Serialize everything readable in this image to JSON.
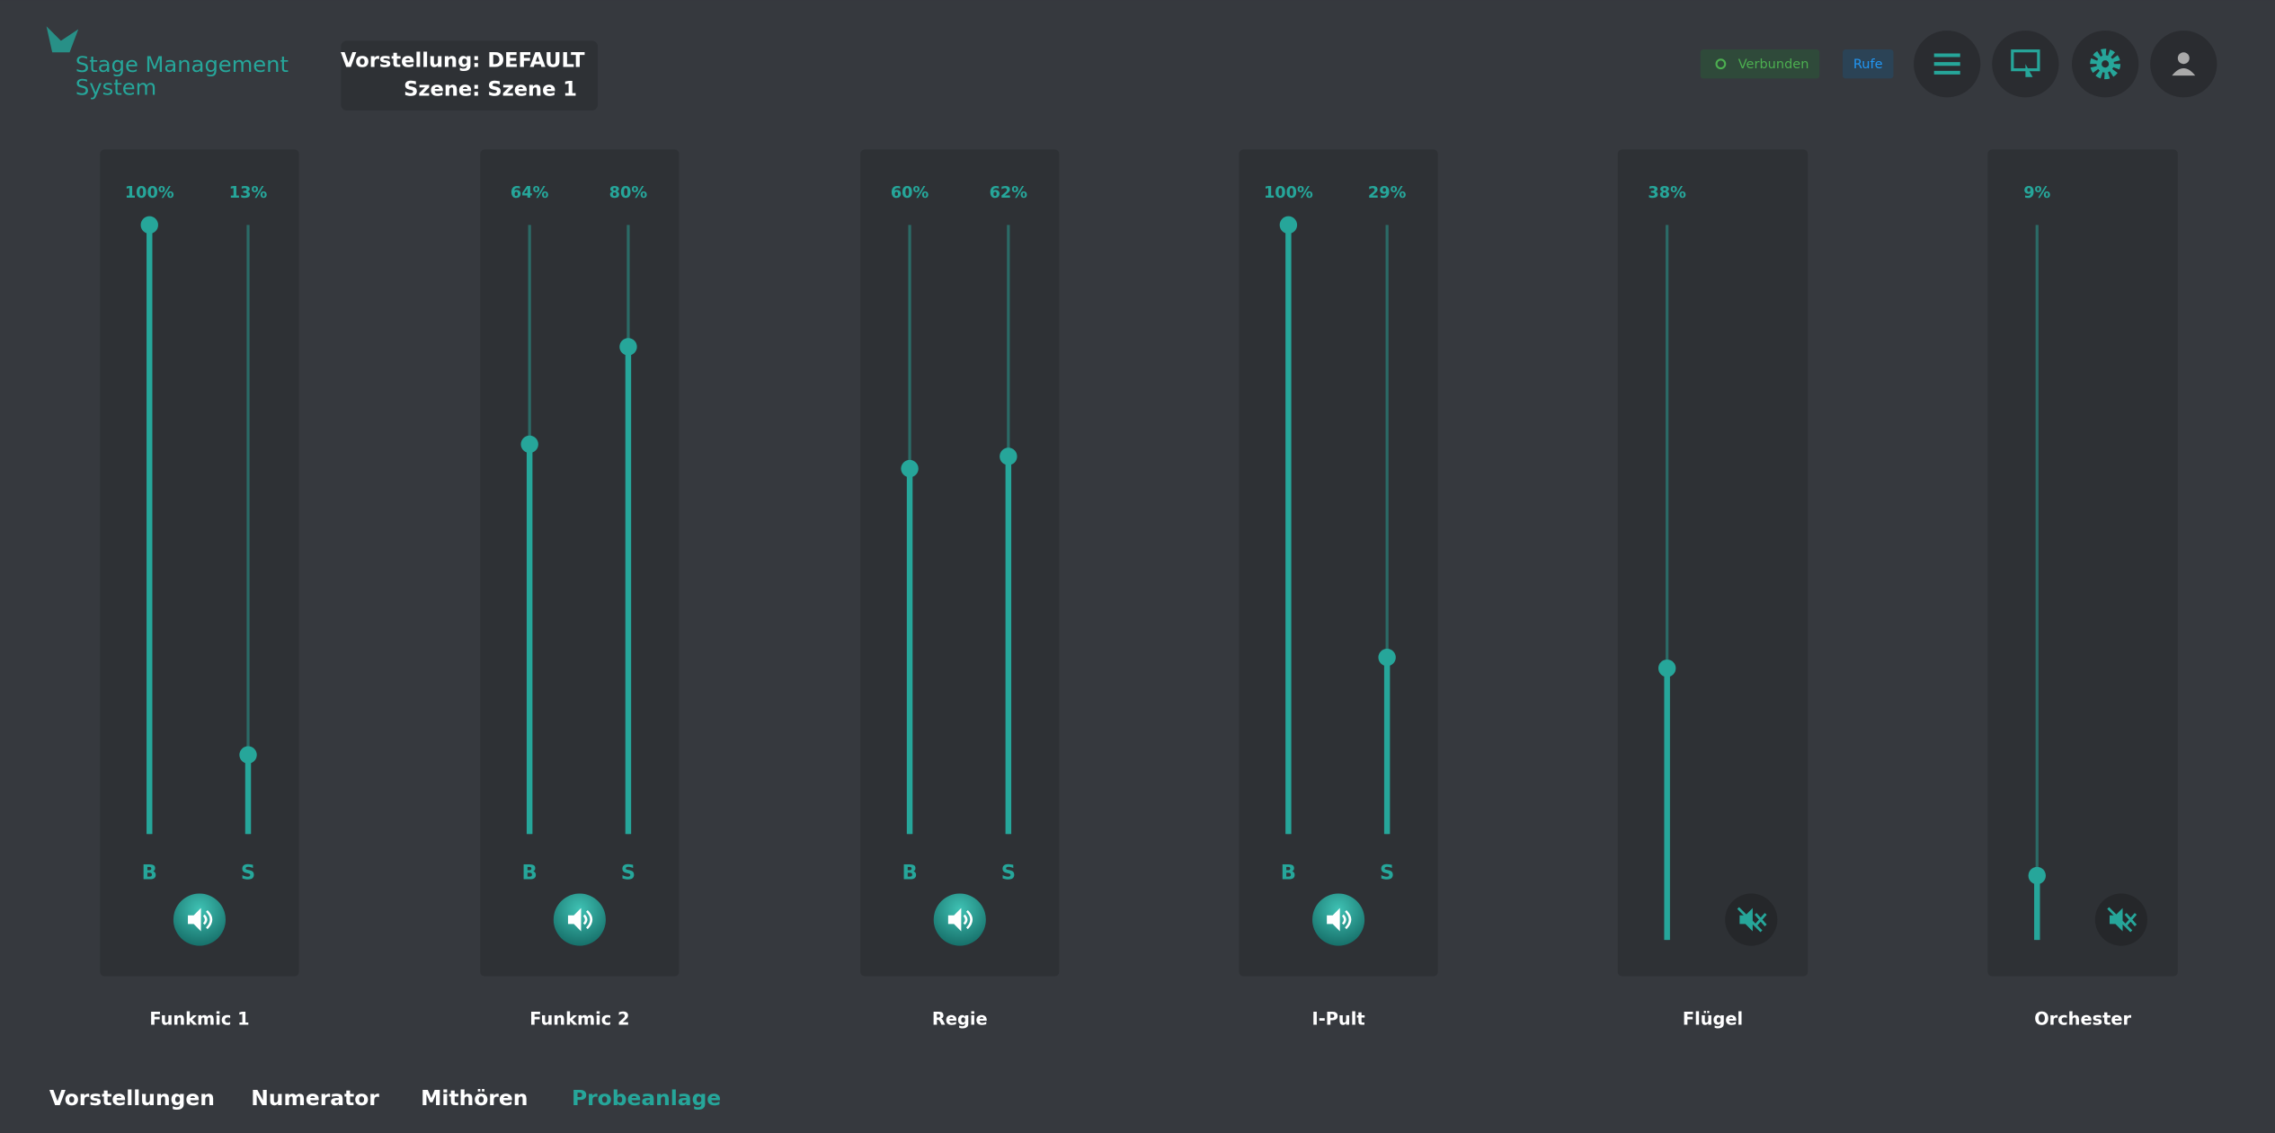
{
  "header": {
    "logo": [
      "Stage Management",
      "System"
    ],
    "show_label": "Vorstellung:",
    "show_value": "DEFAULT",
    "scene_label": "Szene:",
    "scene_value": "Szene 1",
    "status": "Verbunden",
    "call": "Rufe"
  },
  "channels": [
    {
      "name": "Funkmic 1",
      "muted": false,
      "sliders": [
        {
          "label": "B",
          "value": 100,
          "value_label": "100%"
        },
        {
          "label": "S",
          "value": 13,
          "value_label": "13%"
        }
      ]
    },
    {
      "name": "Funkmic 2",
      "muted": false,
      "sliders": [
        {
          "label": "B",
          "value": 64,
          "value_label": "64%"
        },
        {
          "label": "S",
          "value": 80,
          "value_label": "80%"
        }
      ]
    },
    {
      "name": "Regie",
      "muted": false,
      "sliders": [
        {
          "label": "B",
          "value": 60,
          "value_label": "60%"
        },
        {
          "label": "S",
          "value": 62,
          "value_label": "62%"
        }
      ]
    },
    {
      "name": "I-Pult",
      "muted": false,
      "sliders": [
        {
          "label": "B",
          "value": 100,
          "value_label": "100%"
        },
        {
          "label": "S",
          "value": 29,
          "value_label": "29%"
        }
      ]
    },
    {
      "name": "Flügel",
      "muted": true,
      "sliders": [
        {
          "value": 38,
          "value_label": "38%"
        }
      ]
    },
    {
      "name": "Orchester",
      "muted": true,
      "sliders": [
        {
          "value": 9,
          "value_label": "9%"
        }
      ]
    }
  ],
  "nav": {
    "items": [
      "Vorstellungen",
      "Numerator",
      "Mithören",
      "Probeanlage"
    ],
    "active": 3
  }
}
